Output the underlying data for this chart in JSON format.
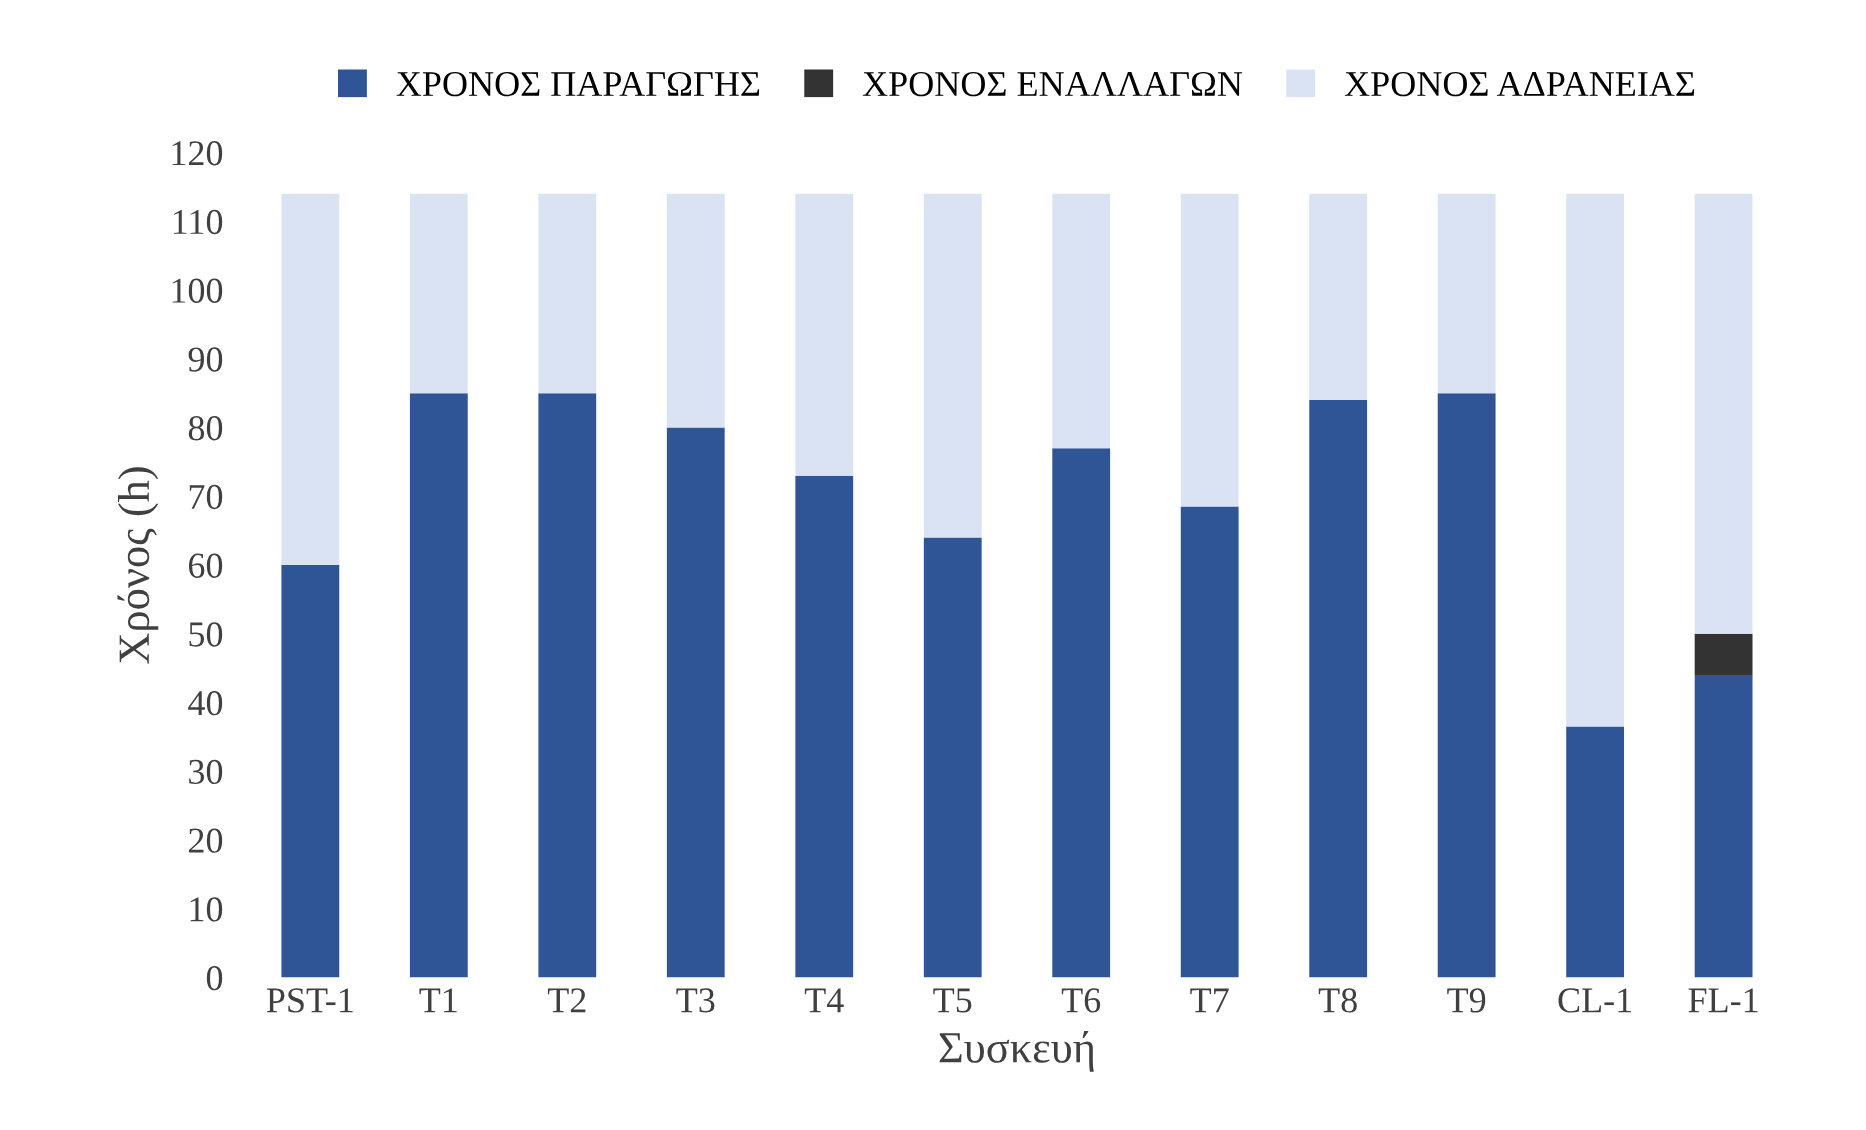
{
  "chart_data": {
    "type": "bar",
    "stacked": true,
    "xlabel": "Συσκευή",
    "ylabel": "Χρόνος (h)",
    "categories": [
      "PST-1",
      "T1",
      "T2",
      "T3",
      "T4",
      "T5",
      "T6",
      "T7",
      "T8",
      "T9",
      "CL-1",
      "FL-1"
    ],
    "series": [
      {
        "name": "ΧΡΟΝΟΣ ΠΑΡΑΓΩΓΗΣ",
        "color": "#2f5597",
        "values": [
          60,
          85,
          85,
          80,
          73,
          64,
          77,
          68.5,
          84,
          85,
          36.5,
          44
        ]
      },
      {
        "name": "ΧΡΟΝΟΣ ΕΝΑΛΛΑΓΩΝ",
        "color": "#333333",
        "values": [
          0,
          0,
          0,
          0,
          0,
          0,
          0,
          0,
          0,
          0,
          0,
          6
        ]
      },
      {
        "name": "ΧΡΟΝΟΣ ΑΔΡΑΝΕΙΑΣ",
        "color": "#dae3f3",
        "values": [
          54,
          29,
          29,
          34,
          41,
          50,
          37,
          45.5,
          30,
          29,
          77.5,
          64
        ]
      }
    ],
    "ylim": [
      0,
      120
    ],
    "yticks": [
      0,
      10,
      20,
      30,
      40,
      50,
      60,
      70,
      80,
      90,
      100,
      110,
      120
    ],
    "grid": false,
    "legend": "top"
  }
}
